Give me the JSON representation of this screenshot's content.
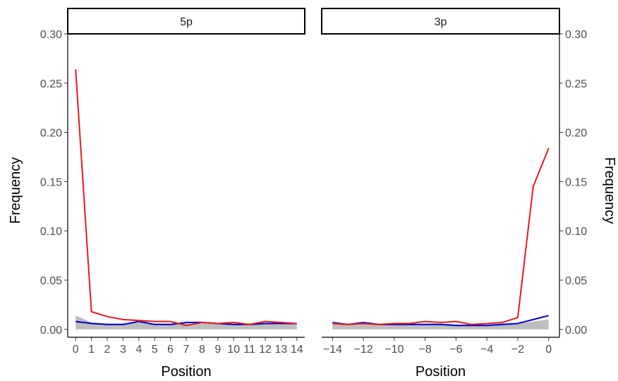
{
  "chart_data": {
    "type": "line",
    "ylabel": "Frequency",
    "ylim": [
      -0.008,
      0.3
    ],
    "y_ticks": [
      0.0,
      0.05,
      0.1,
      0.15,
      0.2,
      0.25,
      0.3
    ],
    "y_tick_labels": [
      "0.00",
      "0.05",
      "0.10",
      "0.15",
      "0.20",
      "0.25",
      "0.30"
    ],
    "series_colors": {
      "red": "#e41a1c",
      "blue": "#0000cc",
      "grey": "#bebebe"
    },
    "panels": [
      {
        "strip": "5p",
        "xlabel": "Position",
        "xlim": [
          -0.5,
          14.5
        ],
        "x_ticks": [
          0,
          1,
          2,
          3,
          4,
          5,
          6,
          7,
          8,
          9,
          10,
          11,
          12,
          13,
          14
        ],
        "x_tick_labels": [
          "0",
          "1",
          "2",
          "3",
          "4",
          "5",
          "6",
          "7",
          "8",
          "9",
          "10",
          "11",
          "12",
          "13",
          "14"
        ],
        "y_axis_side": "left",
        "x": [
          0,
          1,
          2,
          3,
          4,
          5,
          6,
          7,
          8,
          9,
          10,
          11,
          12,
          13,
          14
        ],
        "series": [
          {
            "color": "red",
            "values": [
              0.264,
              0.018,
              0.013,
              0.01,
              0.009,
              0.008,
              0.008,
              0.004,
              0.007,
              0.006,
              0.007,
              0.005,
              0.008,
              0.007,
              0.006
            ]
          },
          {
            "color": "blue",
            "values": [
              0.008,
              0.006,
              0.005,
              0.005,
              0.008,
              0.005,
              0.005,
              0.007,
              0.007,
              0.006,
              0.005,
              0.005,
              0.006,
              0.006,
              0.006
            ]
          }
        ],
        "grey_band": {
          "upper": [
            0.014,
            0.007,
            0.006,
            0.006,
            0.007,
            0.006,
            0.006,
            0.006,
            0.006,
            0.006,
            0.006,
            0.006,
            0.006,
            0.006,
            0.006
          ],
          "lower": [
            0.0,
            0.0,
            0.0,
            0.0,
            0.0,
            0.0,
            0.0,
            0.0,
            0.0,
            0.0,
            0.0,
            0.0,
            0.0,
            0.0,
            0.0
          ]
        }
      },
      {
        "strip": "3p",
        "xlabel": "Position",
        "xlim": [
          -14.7,
          0.7
        ],
        "x_ticks": [
          -14,
          -12,
          -10,
          -8,
          -6,
          -4,
          -2,
          0
        ],
        "x_tick_labels": [
          "−14",
          "−12",
          "−10",
          "−8",
          "−6",
          "−4",
          "−2",
          "0"
        ],
        "y_axis_side": "right",
        "x": [
          -14,
          -13,
          -12,
          -11,
          -10,
          -9,
          -8,
          -7,
          -6,
          -5,
          -4,
          -3,
          -2,
          -1,
          0
        ],
        "series": [
          {
            "color": "red",
            "values": [
              0.006,
              0.005,
              0.006,
              0.005,
              0.006,
              0.006,
              0.008,
              0.007,
              0.008,
              0.005,
              0.006,
              0.007,
              0.012,
              0.145,
              0.184
            ]
          },
          {
            "color": "blue",
            "values": [
              0.007,
              0.005,
              0.007,
              0.005,
              0.005,
              0.005,
              0.005,
              0.005,
              0.004,
              0.004,
              0.004,
              0.005,
              0.006,
              0.01,
              0.014
            ]
          }
        ],
        "grey_band": {
          "upper": [
            0.006,
            0.005,
            0.006,
            0.005,
            0.005,
            0.005,
            0.006,
            0.006,
            0.005,
            0.005,
            0.005,
            0.006,
            0.006,
            0.008,
            0.01
          ],
          "lower": [
            0.0,
            0.0,
            0.0,
            0.0,
            0.0,
            0.0,
            0.0,
            0.0,
            0.0,
            0.0,
            0.0,
            0.0,
            0.0,
            0.0,
            0.0
          ]
        }
      }
    ]
  }
}
